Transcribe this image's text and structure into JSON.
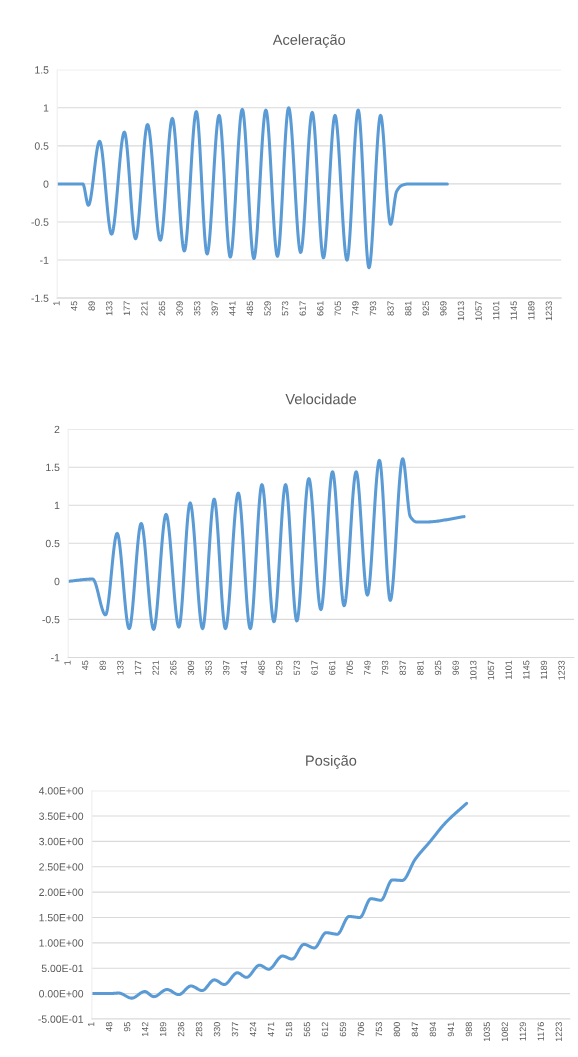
{
  "chart_data": [
    {
      "type": "line",
      "title": "Aceleração",
      "grid": "y",
      "line_style": "solid",
      "x": [
        1,
        65,
        79,
        107,
        137,
        169,
        197,
        227,
        259,
        289,
        319,
        349,
        376,
        406,
        434,
        464,
        493,
        523,
        552,
        580,
        610,
        639,
        667,
        696,
        726,
        754,
        781,
        810,
        835,
        850,
        863,
        880,
        977
      ],
      "series": [
        {
          "color": "#5b9bd5",
          "values": [
            0,
            0,
            -0.28,
            0.56,
            -0.66,
            0.68,
            -0.72,
            0.78,
            -0.74,
            0.86,
            -0.88,
            0.95,
            -0.92,
            0.9,
            -0.96,
            0.98,
            -0.98,
            0.97,
            -0.95,
            1.0,
            -0.9,
            0.94,
            -0.97,
            0.9,
            -1.0,
            0.97,
            -1.1,
            0.9,
            -0.53,
            -0.1,
            -0.02,
            0,
            0
          ]
        }
      ],
      "xlim": [
        1,
        1262
      ],
      "xticks": [
        1,
        45,
        89,
        133,
        177,
        221,
        265,
        309,
        353,
        397,
        441,
        485,
        529,
        573,
        617,
        661,
        705,
        749,
        793,
        837,
        881,
        925,
        969,
        1013,
        1057,
        1101,
        1145,
        1189,
        1233
      ],
      "ylim": [
        -1.5,
        1.5
      ],
      "yticks": [
        -1.5,
        -1,
        -0.5,
        0,
        0.5,
        1,
        1.5
      ]
    },
    {
      "type": "line",
      "title": "Velocidade",
      "grid": "y",
      "line_style": "solid",
      "x": [
        1,
        62,
        94,
        123,
        153,
        183,
        214,
        245,
        277,
        305,
        336,
        365,
        393,
        425,
        455,
        484,
        514,
        543,
        571,
        601,
        631,
        660,
        689,
        719,
        747,
        777,
        804,
        835,
        854,
        870,
        893,
        988
      ],
      "series": [
        {
          "color": "#5b9bd5",
          "values": [
            0,
            0.03,
            -0.44,
            0.63,
            -0.62,
            0.76,
            -0.63,
            0.88,
            -0.6,
            1.03,
            -0.62,
            1.08,
            -0.62,
            1.16,
            -0.62,
            1.27,
            -0.53,
            1.27,
            -0.52,
            1.35,
            -0.37,
            1.44,
            -0.32,
            1.44,
            -0.18,
            1.59,
            -0.25,
            1.61,
            0.85,
            0.78,
            0.78,
            0.85
          ]
        }
      ],
      "xlim": [
        1,
        1262
      ],
      "xticks": [
        1,
        45,
        89,
        133,
        177,
        221,
        265,
        309,
        353,
        397,
        441,
        485,
        529,
        573,
        617,
        661,
        705,
        749,
        793,
        837,
        881,
        925,
        969,
        1013,
        1057,
        1101,
        1145,
        1189,
        1233
      ],
      "ylim": [
        -1,
        2
      ],
      "yticks": [
        -1,
        -0.5,
        0,
        0.5,
        1,
        1.5,
        2
      ]
    },
    {
      "type": "line",
      "title": "Posição",
      "grid": "y",
      "line_style": "solid",
      "x": [
        1,
        47,
        71,
        105,
        139,
        163,
        197,
        228,
        260,
        289,
        321,
        347,
        381,
        405,
        439,
        463,
        499,
        524,
        555,
        582,
        613,
        642,
        673,
        701,
        730,
        756,
        786,
        812,
        846,
        885,
        923,
        980
      ],
      "series": [
        {
          "color": "#5b9bd5",
          "values": [
            0,
            0,
            0.01,
            -0.09,
            0.04,
            -0.06,
            0.08,
            -0.02,
            0.15,
            0.06,
            0.27,
            0.18,
            0.41,
            0.32,
            0.56,
            0.48,
            0.74,
            0.68,
            0.97,
            0.9,
            1.2,
            1.17,
            1.52,
            1.5,
            1.87,
            1.84,
            2.24,
            2.23,
            2.65,
            3.0,
            3.35,
            3.75
          ]
        }
      ],
      "xlim": [
        1,
        1250
      ],
      "xticks": [
        1,
        48,
        95,
        142,
        189,
        236,
        283,
        330,
        377,
        424,
        471,
        518,
        565,
        612,
        659,
        706,
        753,
        800,
        847,
        894,
        941,
        988,
        1035,
        1082,
        1129,
        1176,
        1223
      ],
      "ylim": [
        -0.5,
        4
      ],
      "yticks": [
        {
          "value": -0.5,
          "label": "-5.00E-01"
        },
        {
          "value": 0,
          "label": "0.00E+00"
        },
        {
          "value": 0.5,
          "label": "5.00E-01"
        },
        {
          "value": 1,
          "label": "1.00E+00"
        },
        {
          "value": 1.5,
          "label": "1.50E+00"
        },
        {
          "value": 2,
          "label": "2.00E+00"
        },
        {
          "value": 2.5,
          "label": "2.50E+00"
        },
        {
          "value": 3,
          "label": "3.00E+00"
        },
        {
          "value": 3.5,
          "label": "3.50E+00"
        },
        {
          "value": 4,
          "label": "4.00E+00"
        }
      ]
    }
  ]
}
